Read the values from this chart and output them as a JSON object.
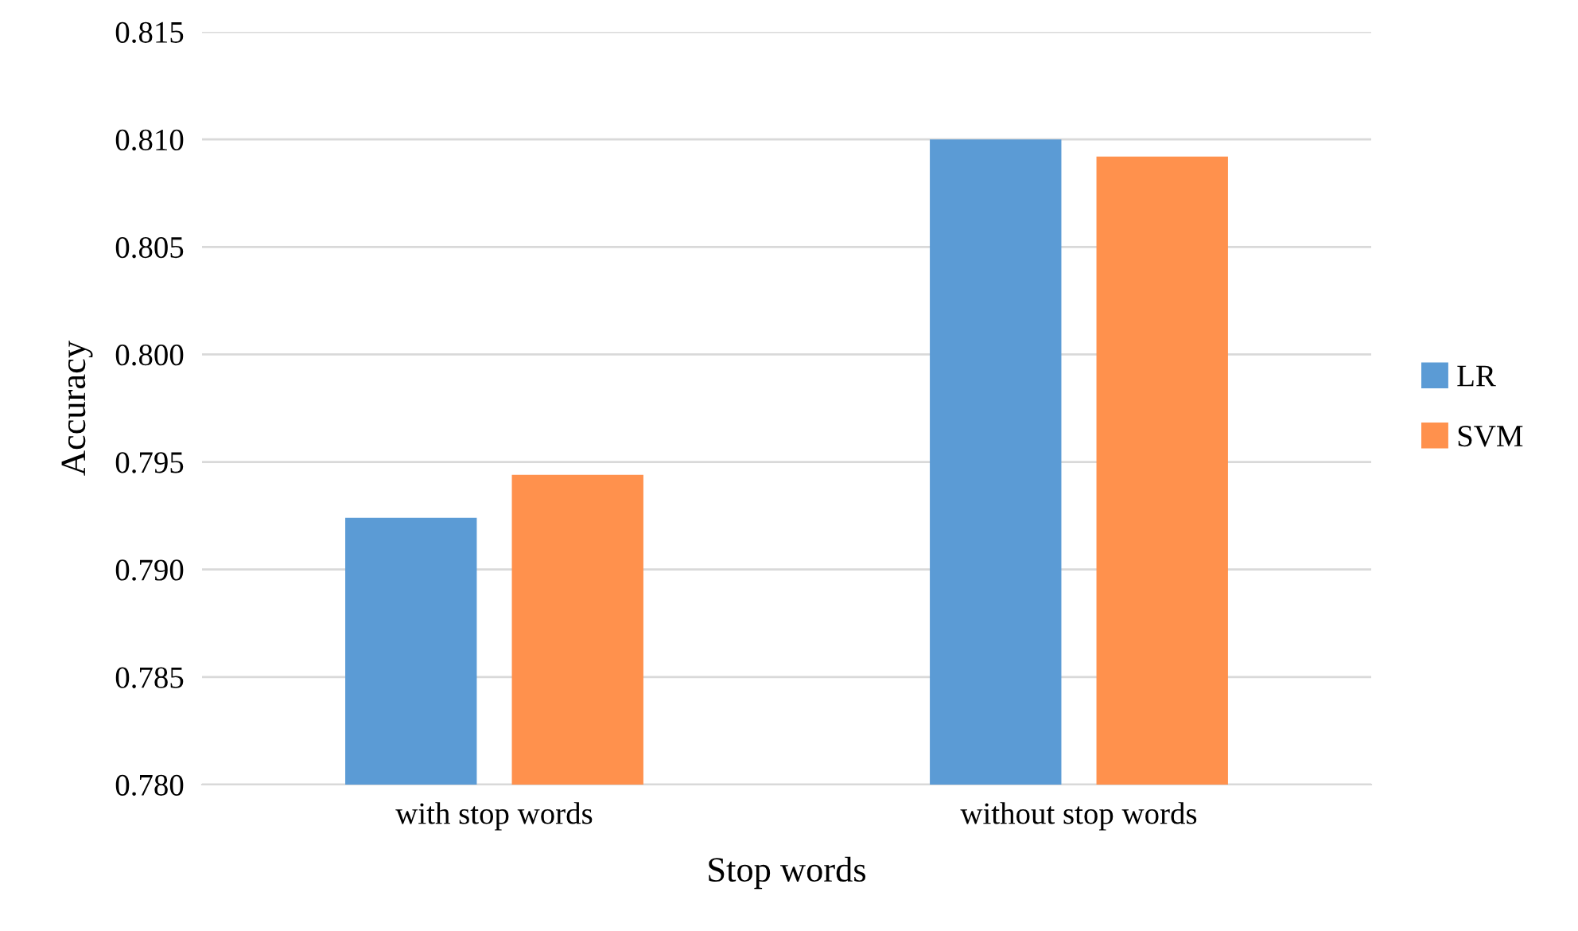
{
  "chart_data": {
    "type": "bar",
    "xlabel": "Stop words",
    "ylabel": "Accuracy",
    "categories": [
      "with stop words",
      "without stop words"
    ],
    "series": [
      {
        "name": "LR",
        "color": "#5b9bd5",
        "values": [
          0.7924,
          0.81
        ]
      },
      {
        "name": "SVM",
        "color": "#ff914d",
        "values": [
          0.7944,
          0.8092
        ]
      }
    ],
    "ylim": [
      0.78,
      0.815
    ],
    "yticks": [
      {
        "value": 0.78,
        "label": "0.780"
      },
      {
        "value": 0.785,
        "label": "0.785"
      },
      {
        "value": 0.79,
        "label": "0.790"
      },
      {
        "value": 0.795,
        "label": "0.795"
      },
      {
        "value": 0.8,
        "label": "0.800"
      },
      {
        "value": 0.805,
        "label": "0.805"
      },
      {
        "value": 0.81,
        "label": "0.810"
      },
      {
        "value": 0.815,
        "label": "0.815"
      }
    ],
    "grid": "y",
    "legend": "right"
  }
}
